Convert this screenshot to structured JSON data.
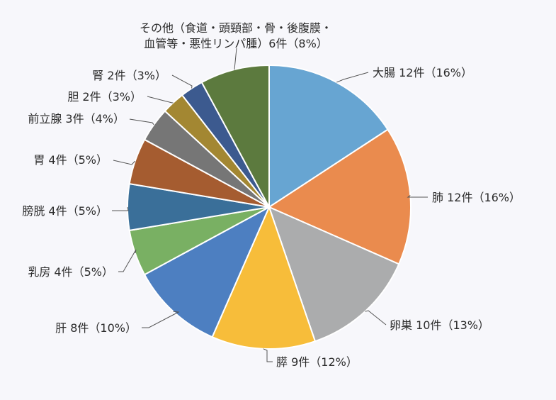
{
  "chart_data": {
    "type": "pie",
    "title": "",
    "unit": "件",
    "start_angle_deg": 0,
    "direction": "clockwise",
    "slices": [
      {
        "name": "大腸",
        "value": 12,
        "percent": "16%",
        "label": "大腸 12件（16%）",
        "color": "#67a5d2"
      },
      {
        "name": "肺",
        "value": 12,
        "percent": "16%",
        "label": "肺 12件（16%）",
        "color": "#ea8b4e"
      },
      {
        "name": "卵巣",
        "value": 10,
        "percent": "13%",
        "label": "卵巣 10件（13%）",
        "color": "#abacad"
      },
      {
        "name": "膵",
        "value": 9,
        "percent": "12%",
        "label": "膵 9件（12%）",
        "color": "#f7bd3a"
      },
      {
        "name": "肝",
        "value": 8,
        "percent": "10%",
        "label": "肝 8件（10%）",
        "color": "#4d7fc1"
      },
      {
        "name": "乳房",
        "value": 4,
        "percent": "5%",
        "label": "乳房 4件（5%）",
        "color": "#79b063"
      },
      {
        "name": "膀胱",
        "value": 4,
        "percent": "5%",
        "label": "膀胱 4件（5%）",
        "color": "#3a6f99"
      },
      {
        "name": "胃",
        "value": 4,
        "percent": "5%",
        "label": "胃 4件（5%）",
        "color": "#a55c30"
      },
      {
        "name": "前立腺",
        "value": 3,
        "percent": "4%",
        "label": "前立腺 3件（4%）",
        "color": "#767676"
      },
      {
        "name": "胆",
        "value": 2,
        "percent": "3%",
        "label": "胆 2件（3%）",
        "color": "#a38732"
      },
      {
        "name": "腎",
        "value": 2,
        "percent": "3%",
        "label": "腎 2件（3%）",
        "color": "#3c5a8f"
      },
      {
        "name": "その他（食道・頭頸部・骨・後腹膜・血管等・悪性リンパ腫）",
        "value": 6,
        "percent": "8%",
        "label_lines": [
          "その他（食道・頭頸部・骨・後腹膜・",
          "血管等・悪性リンパ腫）6件（8%）"
        ],
        "color": "#5c7a3e"
      }
    ]
  }
}
